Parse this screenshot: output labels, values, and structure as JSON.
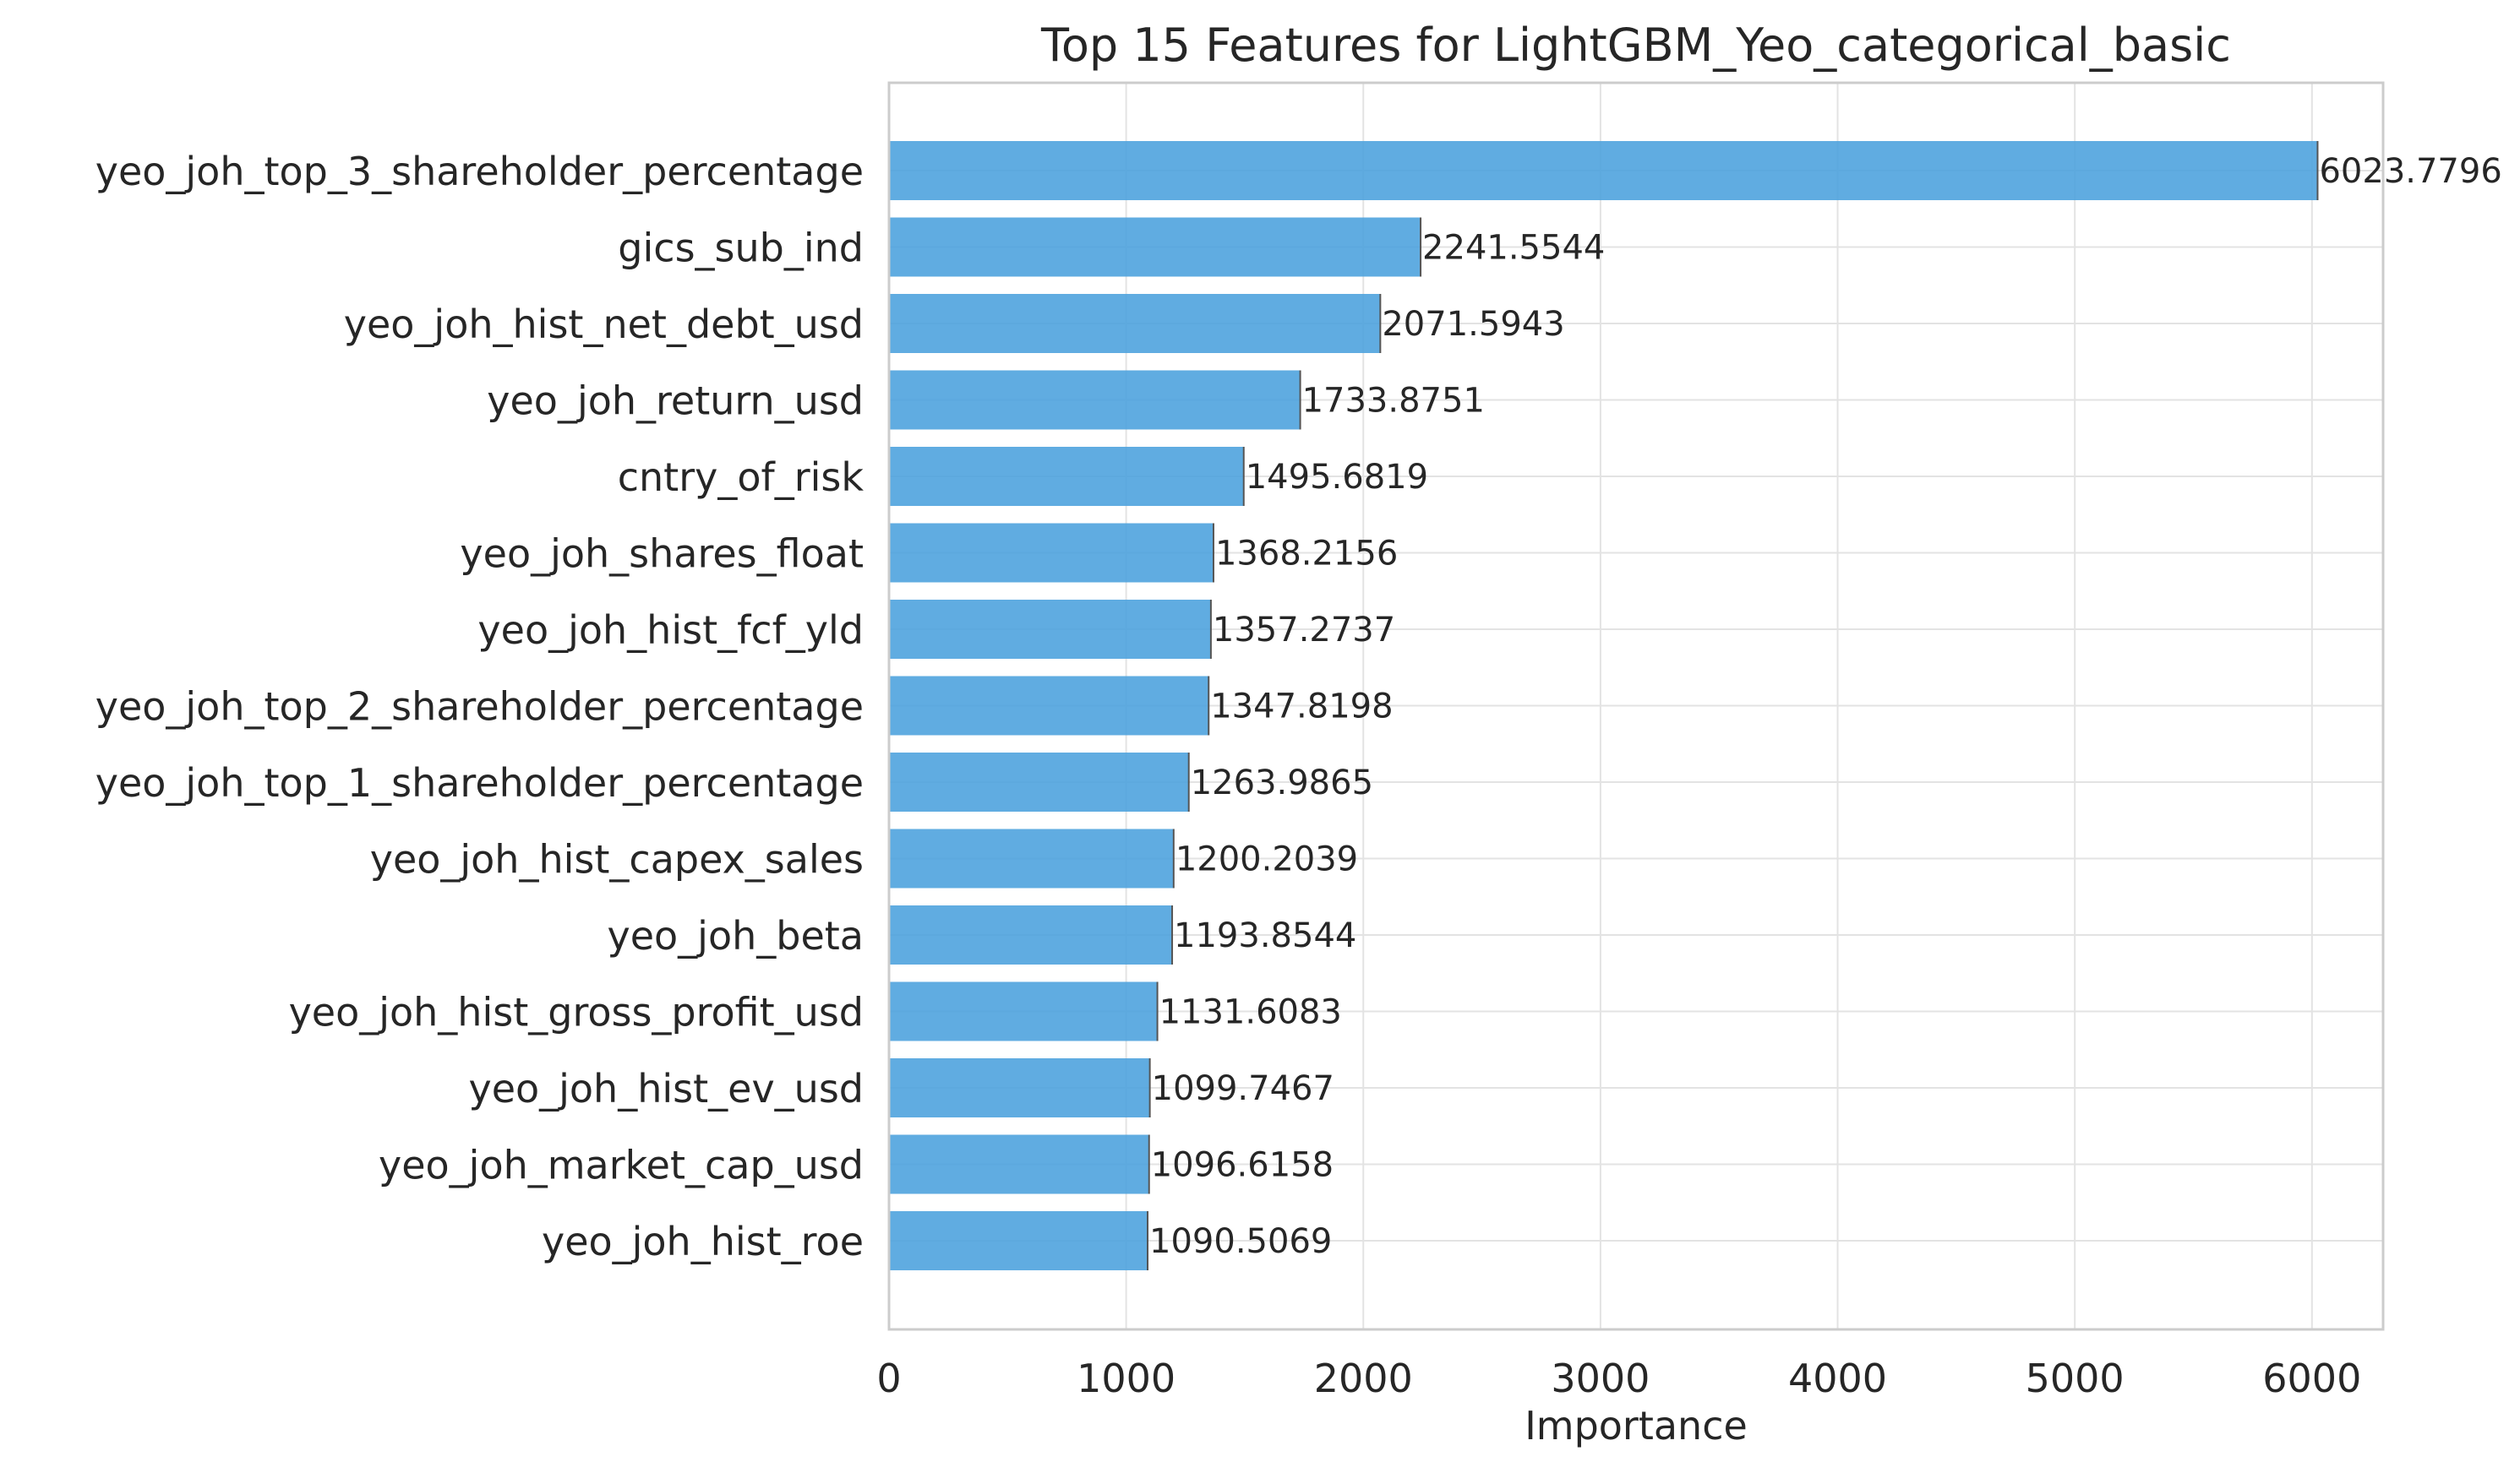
{
  "chart_data": {
    "type": "bar",
    "orientation": "horizontal",
    "title": "Top 15 Features for LightGBM_Yeo_categorical_basic",
    "xlabel": "Importance",
    "ylabel": "",
    "xlim": [
      0,
      6300
    ],
    "xticks": [
      0,
      1000,
      2000,
      3000,
      4000,
      5000,
      6000
    ],
    "xtick_labels": [
      "0",
      "1000",
      "2000",
      "3000",
      "4000",
      "5000",
      "6000"
    ],
    "grid": true,
    "bar_color": "#4aa0dd",
    "categories": [
      "yeo_joh_top_3_shareholder_percentage",
      "gics_sub_ind",
      "yeo_joh_hist_net_debt_usd",
      "yeo_joh_return_usd",
      "cntry_of_risk",
      "yeo_joh_shares_float",
      "yeo_joh_hist_fcf_yld",
      "yeo_joh_top_2_shareholder_percentage",
      "yeo_joh_top_1_shareholder_percentage",
      "yeo_joh_hist_capex_sales",
      "yeo_joh_beta",
      "yeo_joh_hist_gross_profit_usd",
      "yeo_joh_hist_ev_usd",
      "yeo_joh_market_cap_usd",
      "yeo_joh_hist_roe"
    ],
    "values": [
      6023.7796,
      2241.5544,
      2071.5943,
      1733.8751,
      1495.6819,
      1368.2156,
      1357.2737,
      1347.8198,
      1263.9865,
      1200.2039,
      1193.8544,
      1131.6083,
      1099.7467,
      1096.6158,
      1090.5069
    ],
    "value_labels": [
      "6023.7796",
      "2241.5544",
      "2071.5943",
      "1733.8751",
      "1495.6819",
      "1368.2156",
      "1357.2737",
      "1347.8198",
      "1263.9865",
      "1200.2039",
      "1193.8544",
      "1131.6083",
      "1099.7467",
      "1096.6158",
      "1090.5069"
    ]
  }
}
